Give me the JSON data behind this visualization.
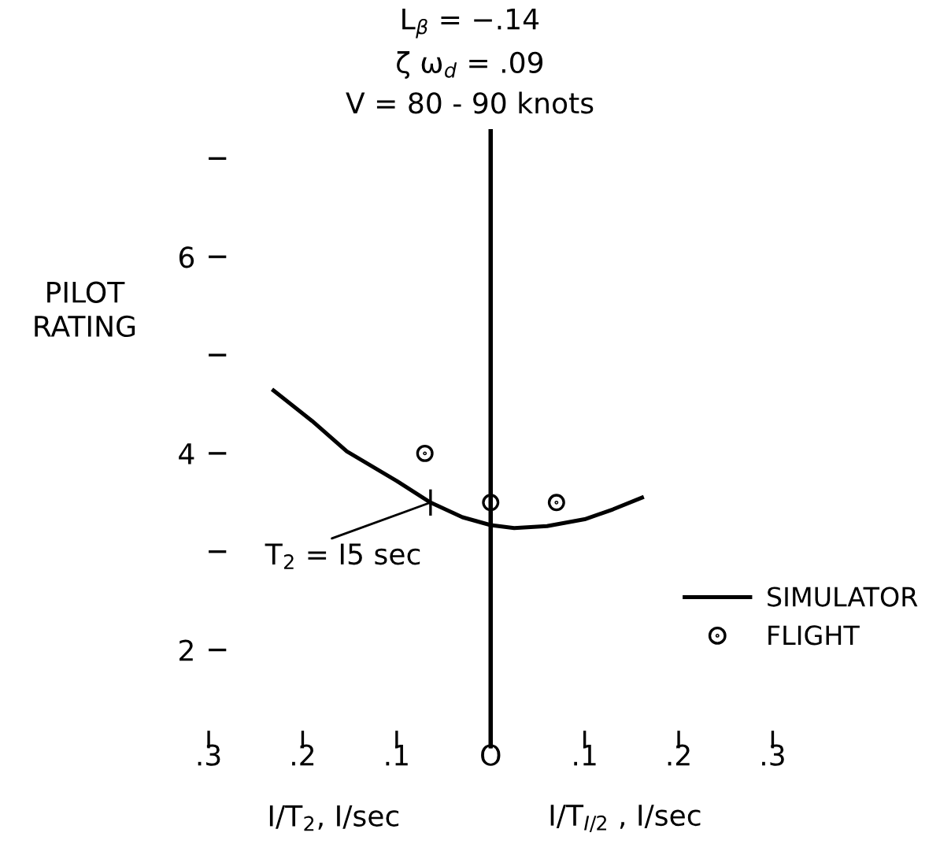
{
  "chart_data": {
    "type": "line",
    "title": "L$_{β}$ = −.14\nζ ω$_{d}$ = .09\nV = 80 - 90 knots",
    "ylabel": "PILOT\nRATING",
    "xlabel": "I/T$_{2}$, I/sec",
    "annotations": [
      {
        "text": "T$_{2}$ = I5 sec",
        "x": -0.064,
        "y": 3.5
      },
      "I/T$_{I/2}$ , I/sec"
    ],
    "series": [
      {
        "name": "SIMULATOR",
        "color": "#000000",
        "x": [
          -0.231,
          -0.19,
          -0.153,
          -0.1,
          -0.064,
          -0.03,
          0,
          0.025,
          0.06,
          0.1,
          0.13,
          0.161
        ],
        "values": [
          4.64,
          4.33,
          4.02,
          3.72,
          3.5,
          3.35,
          3.27,
          3.24,
          3.26,
          3.33,
          3.43,
          3.55
        ]
      },
      {
        "name": "FLIGHT",
        "type": "scatter",
        "color": "#000000",
        "marker": "circle",
        "x": [
          -0.07,
          0,
          0.07
        ],
        "values": [
          4.0,
          3.5,
          3.5
        ]
      }
    ],
    "xlim": [
      -0.3,
      0.3
    ],
    "ylim": [
      1,
      7.3
    ],
    "xticks": [
      {
        "value": -0.3,
        "label": ".3"
      },
      {
        "value": -0.2,
        "label": ".2"
      },
      {
        "value": -0.1,
        "label": ".1"
      },
      {
        "value": 0,
        "label": "O"
      },
      {
        "value": 0.1,
        "label": ".1"
      },
      {
        "value": 0.2,
        "label": ".2"
      },
      {
        "value": 0.3,
        "label": ".3"
      }
    ],
    "yticks": [
      {
        "value": 2,
        "label": "2"
      },
      {
        "value": 3,
        "label": null
      },
      {
        "value": 4,
        "label": "4"
      },
      {
        "value": 5,
        "label": null
      },
      {
        "value": 6,
        "label": "6"
      },
      {
        "value": 7,
        "label": null
      }
    ],
    "ref_lines": [
      {
        "axis": "x",
        "value": 0,
        "color": "#000000"
      }
    ],
    "legend": "bottom right",
    "grid": false
  }
}
